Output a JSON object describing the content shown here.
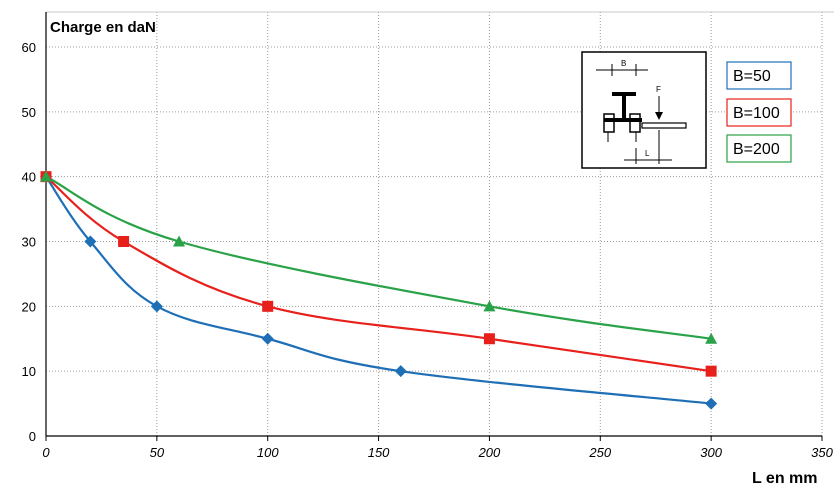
{
  "chart_data": {
    "type": "line",
    "title": "Charge en daN",
    "xlabel": "L en mm",
    "ylabel": "",
    "xlim": [
      0,
      350
    ],
    "ylim": [
      0,
      60
    ],
    "x_ticks": [
      "0",
      "50",
      "100",
      "150",
      "200",
      "250",
      "300",
      "350"
    ],
    "y_ticks": [
      "0",
      "10",
      "20",
      "30",
      "40",
      "50",
      "60"
    ],
    "grid": "dotted",
    "legend_position": "top-right",
    "series": [
      {
        "name": "B=50",
        "color": "#1f6fb6",
        "marker": "diamond",
        "x": [
          0,
          20,
          50,
          100,
          160,
          300
        ],
        "y": [
          40,
          30,
          20,
          15,
          10,
          5
        ]
      },
      {
        "name": "B=100",
        "color": "#e8201c",
        "marker": "square",
        "x": [
          0,
          35,
          100,
          200,
          300
        ],
        "y": [
          40,
          30,
          20,
          15,
          10
        ]
      },
      {
        "name": "B=200",
        "color": "#2aa248",
        "marker": "triangle",
        "x": [
          0,
          60,
          200,
          300
        ],
        "y": [
          40,
          30,
          20,
          15
        ]
      }
    ],
    "inset_diagram": {
      "labels": [
        "B",
        "F",
        "L"
      ]
    }
  }
}
